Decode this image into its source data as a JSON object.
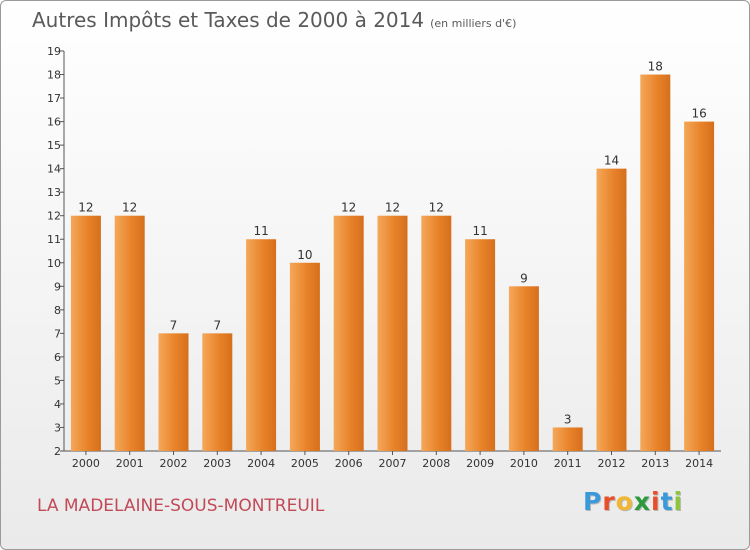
{
  "chart_data": {
    "type": "bar",
    "title": "Autres Impôts et Taxes de 2000 à 2014",
    "unit": "(en milliers d'€)",
    "categories": [
      "2000",
      "2001",
      "2002",
      "2003",
      "2004",
      "2005",
      "2006",
      "2007",
      "2008",
      "2009",
      "2010",
      "2011",
      "2012",
      "2013",
      "2014"
    ],
    "values": [
      12,
      12,
      7,
      7,
      11,
      10,
      12,
      12,
      12,
      11,
      9,
      3,
      14,
      18,
      16
    ],
    "ylim": [
      2,
      19
    ],
    "yticks": [
      2,
      3,
      4,
      5,
      6,
      7,
      8,
      9,
      10,
      11,
      12,
      13,
      14,
      15,
      16,
      17,
      18,
      19
    ],
    "grid": false,
    "data_labels": true,
    "bar_color": "#e8832a"
  },
  "footer": {
    "city": "LA MADELAINE-SOUS-MONTREUIL",
    "logo_letters": [
      "P",
      "r",
      "o",
      "x",
      "i",
      "t",
      "i"
    ],
    "logo_colors": [
      "#3a9ad9",
      "#e84e2a",
      "#f2b632",
      "#2e9a3e",
      "#e84e2a",
      "#3a9ad9",
      "#8cc63f"
    ]
  }
}
